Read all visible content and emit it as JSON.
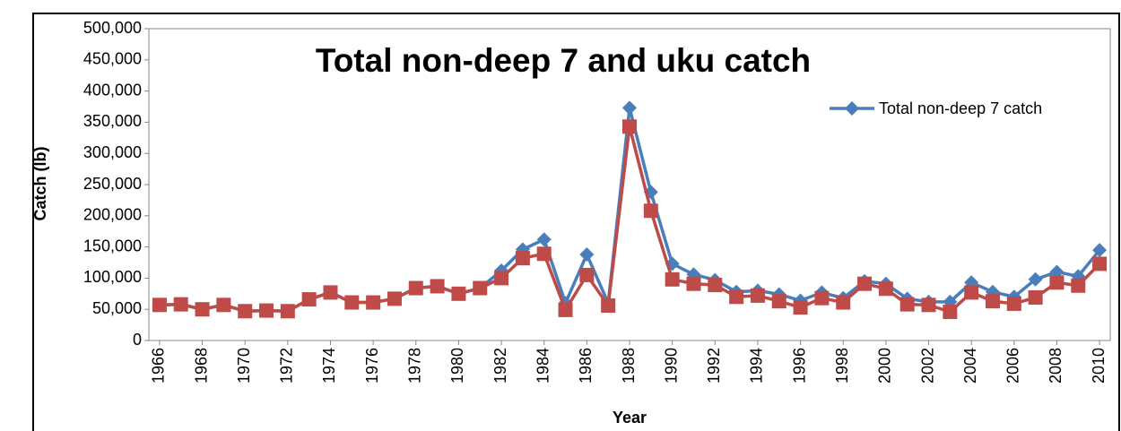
{
  "chart_data": {
    "type": "line",
    "title": "Total non-deep 7 and uku catch",
    "x_label": "Year",
    "y_label": "Catch (lb)",
    "x": [
      1966,
      1967,
      1968,
      1969,
      1970,
      1971,
      1972,
      1973,
      1974,
      1975,
      1976,
      1977,
      1978,
      1979,
      1980,
      1981,
      1982,
      1983,
      1984,
      1985,
      1986,
      1987,
      1988,
      1989,
      1990,
      1991,
      1992,
      1993,
      1994,
      1995,
      1996,
      1997,
      1998,
      1999,
      2000,
      2001,
      2002,
      2003,
      2004,
      2005,
      2006,
      2007,
      2008,
      2009,
      2010
    ],
    "xlim": [
      1965.5,
      2010.5
    ],
    "xticks": [
      1966,
      1968,
      1970,
      1972,
      1974,
      1976,
      1978,
      1980,
      1982,
      1984,
      1986,
      1988,
      1990,
      1992,
      1994,
      1996,
      1998,
      2000,
      2002,
      2004,
      2006,
      2008,
      2010
    ],
    "ylim": [
      0,
      500000
    ],
    "yticks": [
      0,
      {
        "value": 50000,
        "label": "50,000"
      },
      {
        "value": 100000,
        "label": "100,000"
      },
      {
        "value": 150000,
        "label": "150,000"
      },
      {
        "value": 200000,
        "label": "200,000"
      },
      {
        "value": 250000,
        "label": "250,000"
      },
      {
        "value": 300000,
        "label": "300,000"
      },
      {
        "value": 350000,
        "label": "350,000"
      },
      {
        "value": 400000,
        "label": "400,000"
      },
      {
        "value": 450000,
        "label": "450,000"
      },
      {
        "value": 500000,
        "label": "500,000"
      }
    ],
    "legend": "upper right",
    "series": [
      {
        "name": "Total non-deep 7 catch",
        "color": "#4a7ebb",
        "marker": "diamond",
        "values": [
          57000,
          58000,
          50000,
          57000,
          47000,
          48000,
          47000,
          66000,
          77000,
          61000,
          61000,
          67000,
          84000,
          87000,
          75000,
          84000,
          112000,
          146000,
          162000,
          60000,
          138000,
          60000,
          373000,
          238000,
          123000,
          106000,
          97000,
          78000,
          80000,
          74000,
          64000,
          77000,
          68000,
          95000,
          91000,
          67000,
          62000,
          62000,
          93000,
          78000,
          70000,
          98000,
          110000,
          103000,
          145000
        ]
      },
      {
        "color": "#be4b48",
        "marker": "square",
        "values": [
          57000,
          58000,
          50000,
          57000,
          47000,
          48000,
          47000,
          66000,
          77000,
          61000,
          61000,
          67000,
          84000,
          87000,
          75000,
          84000,
          100000,
          132000,
          139000,
          49000,
          105000,
          56000,
          343000,
          208000,
          98000,
          91000,
          89000,
          70000,
          72000,
          63000,
          53000,
          68000,
          61000,
          91000,
          83000,
          58000,
          57000,
          46000,
          77000,
          63000,
          59000,
          69000,
          93000,
          88000,
          123000
        ]
      }
    ]
  }
}
